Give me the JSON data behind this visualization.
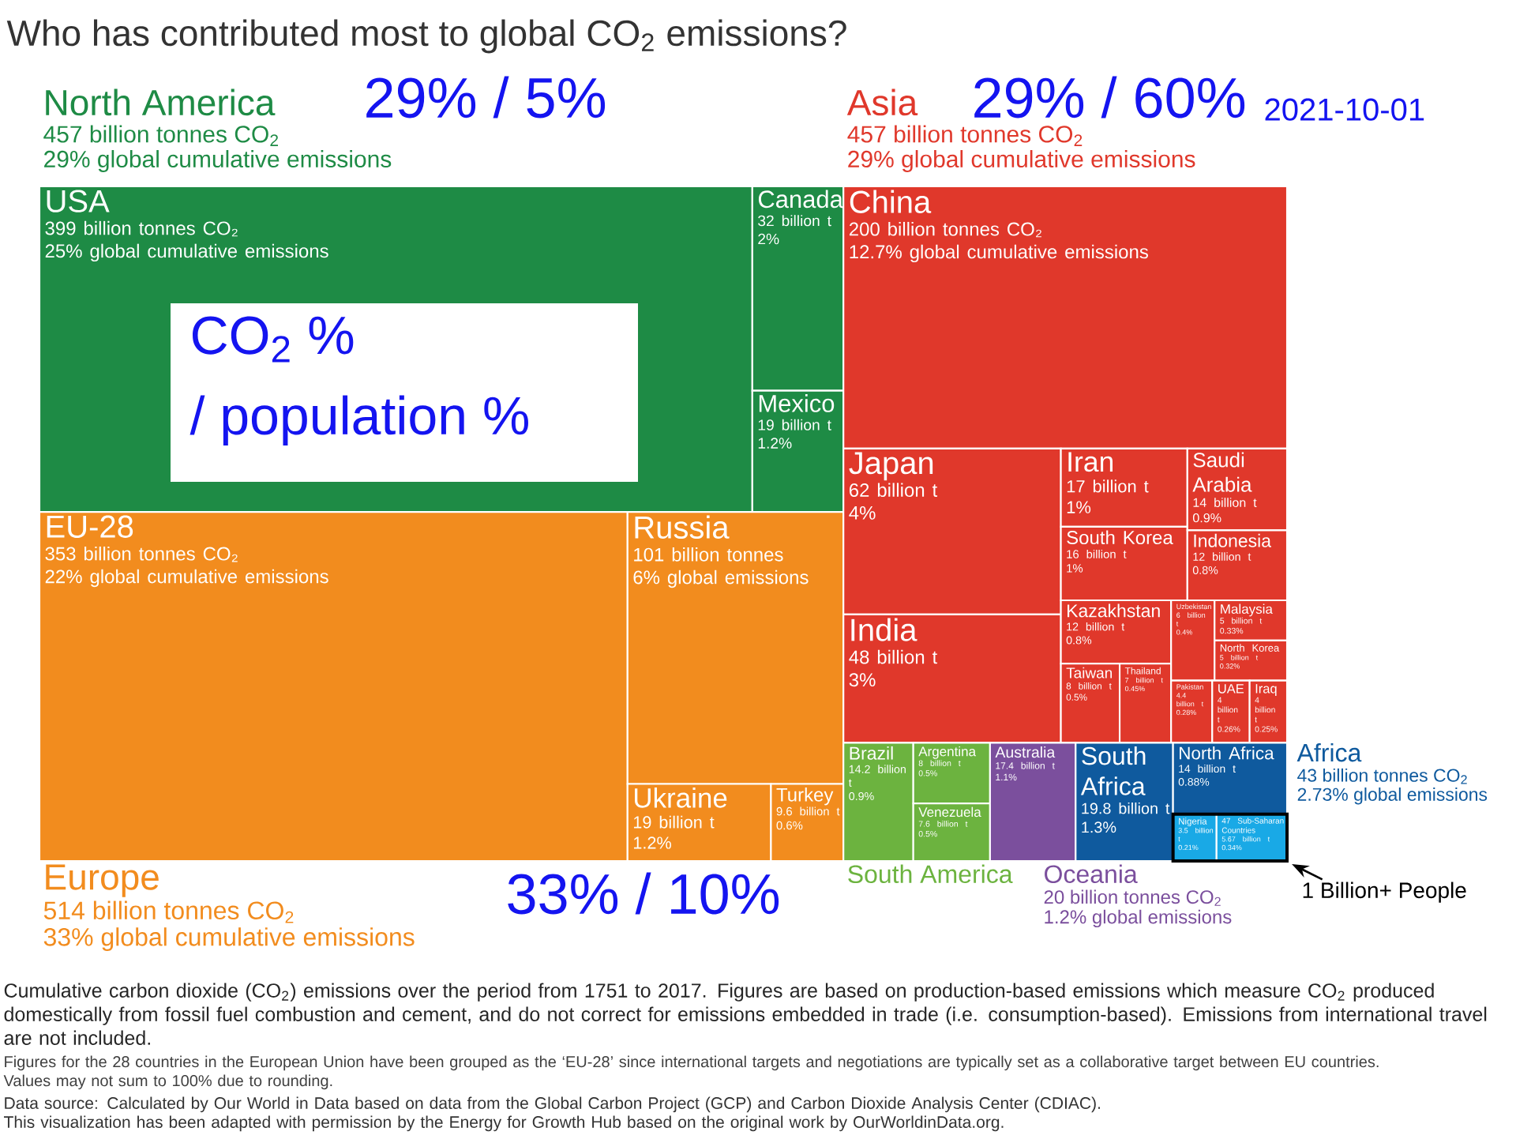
{
  "chart_data": {
    "type": "other",
    "title": "Who has contributed most to global CO$_{2}$ emissions?",
    "categories": [
      "USA",
      "Canada",
      "Mexico",
      "EU-28",
      "Russia",
      "Ukraine",
      "Turkey",
      "China",
      "Japan",
      "India",
      "Iran",
      "South Korea",
      "Saudi Arabia",
      "Indonesia",
      "Kazakhstan",
      "Taiwan",
      "Thailand",
      "Uzbekistan",
      "Malaysia",
      "North Korea",
      "Pakistan",
      "UAE",
      "Iraq",
      "Brazil",
      "Argentina",
      "Venezuela",
      "Australia",
      "South Africa",
      "North Africa",
      "Nigeria",
      "47 Sub-Saharan Countries"
    ],
    "series": [
      {
        "name": "North America",
        "color": "#1e8b45",
        "values": [
          399,
          32,
          19,
          null,
          null,
          null,
          null,
          null,
          null,
          null,
          null,
          null,
          null,
          null,
          null,
          null,
          null,
          null,
          null,
          null,
          null,
          null,
          null,
          null,
          null,
          null,
          null,
          null,
          null,
          null,
          null
        ],
        "value_labels": [
          "399 billion tonnes CO₂",
          "32 billion t",
          "19 billion t",
          null,
          null,
          null,
          null,
          null,
          null,
          null,
          null,
          null,
          null,
          null,
          null,
          null,
          null,
          null,
          null,
          null,
          null,
          null,
          null,
          null,
          null,
          null,
          null,
          null,
          null,
          null,
          null
        ]
      },
      {
        "name": "Europe",
        "color": "#f28c1e",
        "values": [
          null,
          null,
          null,
          353,
          101,
          19,
          9.6,
          null,
          null,
          null,
          null,
          null,
          null,
          null,
          null,
          null,
          null,
          null,
          null,
          null,
          null,
          null,
          null,
          null,
          null,
          null,
          null,
          null,
          null,
          null,
          null
        ],
        "value_labels": [
          null,
          null,
          null,
          "353 billion tonnes CO₂",
          "101 billion tonnes",
          "19 billion t",
          "9.6 billion t",
          null,
          null,
          null,
          null,
          null,
          null,
          null,
          null,
          null,
          null,
          null,
          null,
          null,
          null,
          null,
          null,
          null,
          null,
          null,
          null,
          null,
          null,
          null,
          null
        ]
      },
      {
        "name": "Asia",
        "color": "#e0382b",
        "values": [
          null,
          null,
          null,
          null,
          null,
          null,
          null,
          200,
          62,
          48,
          17,
          16,
          14,
          12,
          12,
          8,
          7,
          6,
          5,
          5,
          4.4,
          4,
          4,
          null,
          null,
          null,
          null,
          null,
          null,
          null,
          null
        ],
        "value_labels": [
          null,
          null,
          null,
          null,
          null,
          null,
          null,
          "200 billion tonnes CO₂",
          "62 billion t",
          "48 billion t",
          "17 billion t",
          "16 billion t",
          "14 billion t",
          "12 billion t",
          "12 billion t",
          "8 billion t",
          "7 billion t",
          "6 billion t",
          "5 billion t",
          "5 billion t",
          "4.4 billion t",
          "4 billion t",
          "4 billion t",
          null,
          null,
          null,
          null,
          null,
          null,
          null,
          null
        ]
      },
      {
        "name": "South America",
        "color": "#6cb33f",
        "values": [
          null,
          null,
          null,
          null,
          null,
          null,
          null,
          null,
          null,
          null,
          null,
          null,
          null,
          null,
          null,
          null,
          null,
          null,
          null,
          null,
          null,
          null,
          null,
          14.2,
          8,
          7.6,
          null,
          null,
          null,
          null,
          null
        ],
        "value_labels": [
          null,
          null,
          null,
          null,
          null,
          null,
          null,
          null,
          null,
          null,
          null,
          null,
          null,
          null,
          null,
          null,
          null,
          null,
          null,
          null,
          null,
          null,
          null,
          "14.2 billion t",
          "8 billion t",
          "7.6 billion t",
          null,
          null,
          null,
          null,
          null
        ]
      },
      {
        "name": "Oceania",
        "color": "#7b4f9d",
        "values": [
          null,
          null,
          null,
          null,
          null,
          null,
          null,
          null,
          null,
          null,
          null,
          null,
          null,
          null,
          null,
          null,
          null,
          null,
          null,
          null,
          null,
          null,
          null,
          null,
          null,
          null,
          17.4,
          null,
          null,
          null,
          null
        ],
        "value_labels": [
          null,
          null,
          null,
          null,
          null,
          null,
          null,
          null,
          null,
          null,
          null,
          null,
          null,
          null,
          null,
          null,
          null,
          null,
          null,
          null,
          null,
          null,
          null,
          null,
          null,
          null,
          "17.4 billion t",
          null,
          null,
          null,
          null
        ]
      },
      {
        "name": "Africa",
        "color": "#0f5a9e",
        "values": [
          null,
          null,
          null,
          null,
          null,
          null,
          null,
          null,
          null,
          null,
          null,
          null,
          null,
          null,
          null,
          null,
          null,
          null,
          null,
          null,
          null,
          null,
          null,
          null,
          null,
          null,
          null,
          19.8,
          14,
          3.5,
          5.67
        ],
        "value_labels": [
          null,
          null,
          null,
          null,
          null,
          null,
          null,
          null,
          null,
          null,
          null,
          null,
          null,
          null,
          null,
          null,
          null,
          null,
          null,
          null,
          null,
          null,
          null,
          null,
          null,
          null,
          null,
          "19.8 billion t",
          "14 billion t",
          "3.5 billion t",
          "5.67 billion t"
        ],
        "colors": [
          null,
          null,
          null,
          null,
          null,
          null,
          null,
          null,
          null,
          null,
          null,
          null,
          null,
          null,
          null,
          null,
          null,
          null,
          null,
          null,
          null,
          null,
          null,
          null,
          null,
          null,
          null,
          "#0f5a9e",
          "#0f5a9e",
          "#19a9e6",
          "#19a9e6"
        ]
      }
    ],
    "annotations": [
      "29% / 5%",
      "29% / 60%",
      "33% / 10%",
      "CO$_{2}$ %",
      "/ population %",
      "2021-10-01",
      "1 Billion+ People",
      "Cumulative carbon dioxide (CO$_{2}$) emissions over the period from 1751 to 2017. Figures are based on production-based emissions which measure CO$_{2}$ produced domestically from fossil fuel combustion and cement, and do not correct for emissions embedded in trade (i.e. consumption-based). Emissions from international travel are not included.",
      "Figures for the 28 countries in the European Union have been grouped as the ‘EU-28’ since international targets and negotiations are typically set as a collaborative target between EU countries.",
      "Values may not sum to 100% due to rounding.",
      "Data source: Calculated by Our World in Data based on data from the Global Carbon Project (GCP) and Carbon Dioxide Analysis Center (CDIAC).",
      "This visualization has been adapted with permission by the Energy for Growth Hub based on the original work by OurWorldinData.org.",
      "457 billion tonnes CO$_{2}$",
      "29% global cumulative emissions",
      "514 billion tonnes CO$_{2}$",
      "33% global cumulative emissions",
      "457 billion tonnes CO$_{2}$",
      "29% global cumulative emissions",
      "20 billion tonnes CO$_{2}$",
      "1.2% global emissions",
      "43 billion tonnes CO$_{2}$",
      "2.73% global emissions",
      "25% global cumulative emissions",
      "2%",
      "1.2%",
      "22% global cumulative emissions",
      "6% global emissions",
      "1.2%",
      "0.6%",
      "12.7% global cumulative emissions",
      "4%",
      "3%",
      "1%",
      "1%",
      "0.9%",
      "0.8%",
      "0.8%",
      "0.5%",
      "0.45%",
      "0.4%",
      "0.33%",
      "0.32%",
      "0.28%",
      "0.26%",
      "0.25%",
      "0.9%",
      "0.5%",
      "0.5%",
      "1.1%",
      "1.3%",
      "0.88%",
      "0.21%",
      "0.34%"
    ]
  }
}
